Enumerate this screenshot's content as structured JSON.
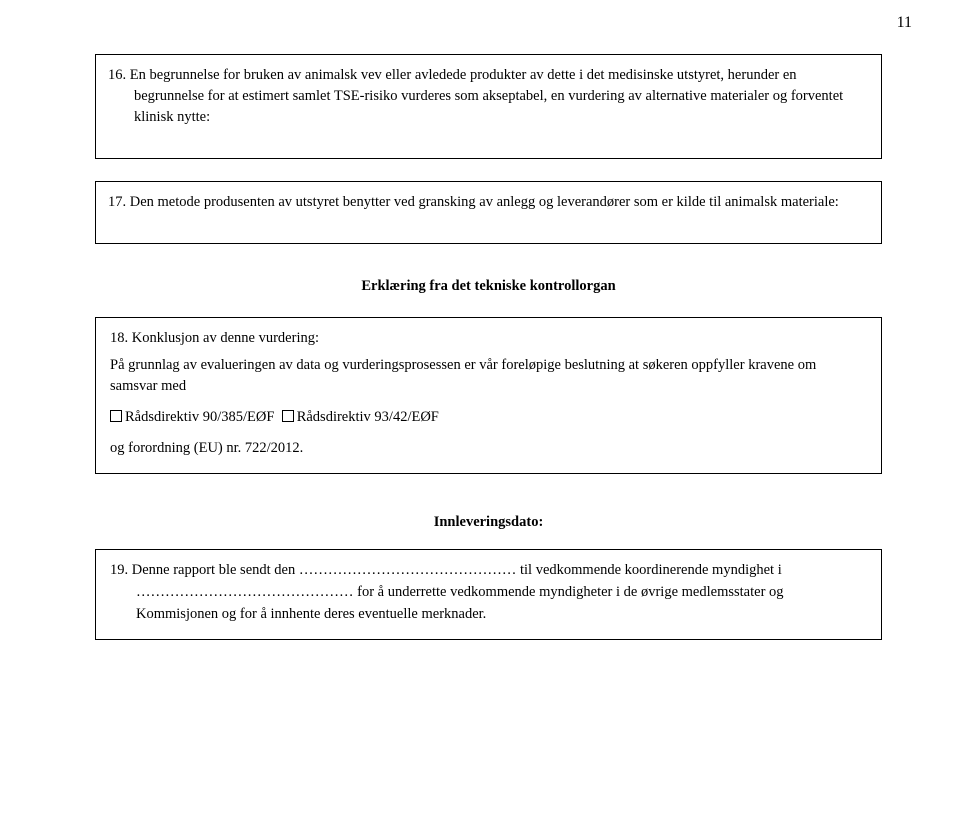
{
  "pageNumber": "11",
  "box16": {
    "number": "16.",
    "text": "En begrunnelse for bruken av animalsk vev eller avledede produkter av dette i det medisinske utstyret, herunder en begrunnelse for at estimert samlet TSE-risiko vurderes som akseptabel, en vurdering av alternative materialer og forventet klinisk nytte:"
  },
  "box17": {
    "number": "17.",
    "text": "Den metode produsenten av utstyret benytter ved gransking av anlegg og leverandører som er kilde til animalsk materiale:"
  },
  "heading1": "Erklæring fra det tekniske kontrollorgan",
  "box18": {
    "number": "18.",
    "title": "Konklusjon av denne vurdering:",
    "para": "På grunnlag av evalueringen av data og vurderingsprosessen er vår foreløpige beslutning at søkeren oppfyller kravene om samsvar med",
    "opt1": "Rådsdirektiv 90/385/EØF",
    "opt2": "Rådsdirektiv 93/42/EØF",
    "last": "og forordning (EU) nr. 722/2012."
  },
  "heading2": "Innleveringsdato:",
  "box19": {
    "number": "19.",
    "line1a": "Denne rapport ble sendt den ………………………………………",
    "line1b": " til vedkommende koordinerende myndighet i",
    "line2": "……………………………………… for å underrette vedkommende myndigheter i de øvrige medlemsstater og Kommisjonen og for å innhente deres eventuelle merknader."
  }
}
